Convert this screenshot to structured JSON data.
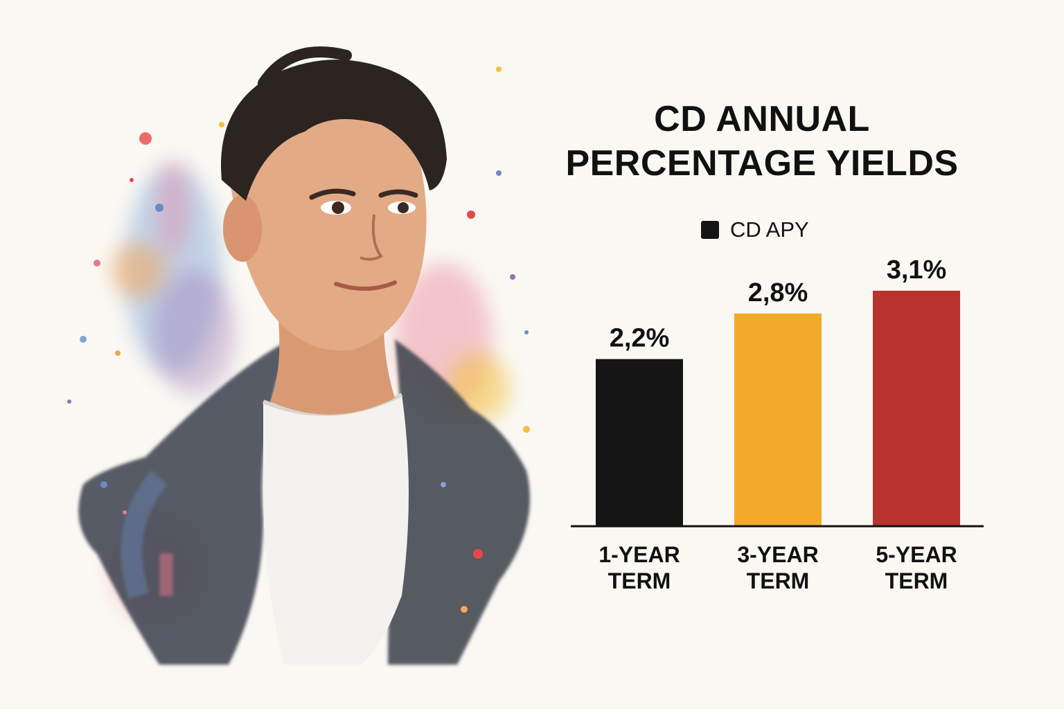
{
  "chart_data": {
    "type": "bar",
    "title_lines": [
      "CD ANNUAL",
      "PERCENTAGE YIELDS"
    ],
    "legend": {
      "label": "CD APY",
      "color": "#151515"
    },
    "categories": [
      [
        "1-YEAR",
        "TERM"
      ],
      [
        "3-YEAR",
        "TERM"
      ],
      [
        "5-YEAR",
        "TERM"
      ]
    ],
    "values": [
      2.2,
      2.8,
      3.1
    ],
    "value_labels": [
      "2,2%",
      "2,8%",
      "3,1%"
    ],
    "colors": [
      "#151515",
      "#f0aa27",
      "#b8322e"
    ],
    "ylim": [
      0,
      3.6
    ],
    "grid": false,
    "legend_position": "top"
  },
  "portrait": {
    "subject": "watercolor portrait of a young man",
    "colors": {
      "hair": "#2b2420",
      "skin": "#e3aa86",
      "jacket": "#3f4652",
      "shirt": "#f4f2ee"
    }
  }
}
